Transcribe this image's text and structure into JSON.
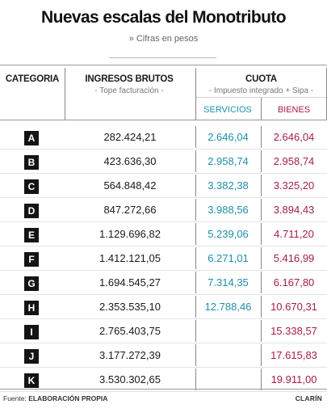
{
  "title": "Nuevas escalas del Monotributo",
  "subtitle": "» Cifras en pesos",
  "headers": {
    "categoria": "CATEGORIA",
    "ingresos": "INGRESOS BRUTOS",
    "ingresos_sub": "- Tope facturación -",
    "cuota": "CUOTA",
    "cuota_sub": "- Impuesto integrado + Sipa -",
    "servicios": "SERVICIOS",
    "bienes": "BIENES"
  },
  "rows": [
    {
      "cat": "A",
      "ingresos": "282.424,21",
      "servicios": "2.646,04",
      "bienes": "2.646,04"
    },
    {
      "cat": "B",
      "ingresos": "423.636,30",
      "servicios": "2.958,74",
      "bienes": "2.958,74"
    },
    {
      "cat": "C",
      "ingresos": "564.848,42",
      "servicios": "3.382,38",
      "bienes": "3.325,20"
    },
    {
      "cat": "D",
      "ingresos": "847.272,66",
      "servicios": "3.988,56",
      "bienes": "3.894,43"
    },
    {
      "cat": "E",
      "ingresos": "1.129.696,82",
      "servicios": "5.239,06",
      "bienes": "4.711,20"
    },
    {
      "cat": "F",
      "ingresos": "1.412.121,05",
      "servicios": "6.271,01",
      "bienes": "5.416,99"
    },
    {
      "cat": "G",
      "ingresos": "1.694.545,27",
      "servicios": "7.314,35",
      "bienes": "6.167,80"
    },
    {
      "cat": "H",
      "ingresos": "2.353.535,10",
      "servicios": "12.788,46",
      "bienes": "10.670,31"
    },
    {
      "cat": "I",
      "ingresos": "2.765.403,75",
      "servicios": "",
      "bienes": "15.338,57"
    },
    {
      "cat": "J",
      "ingresos": "3.177.272,39",
      "servicios": "",
      "bienes": "17.615,83"
    },
    {
      "cat": "K",
      "ingresos": "3.530.302,65",
      "servicios": "",
      "bienes": "19.911,00"
    }
  ],
  "footer": {
    "source_label": "Fuente: ",
    "source_value": "ELABORACIÓN PROPIA",
    "brand": "CLARÍN"
  },
  "colors": {
    "servicios": "#1e8fa8",
    "bienes": "#a51d4c",
    "badge": "#141414"
  }
}
